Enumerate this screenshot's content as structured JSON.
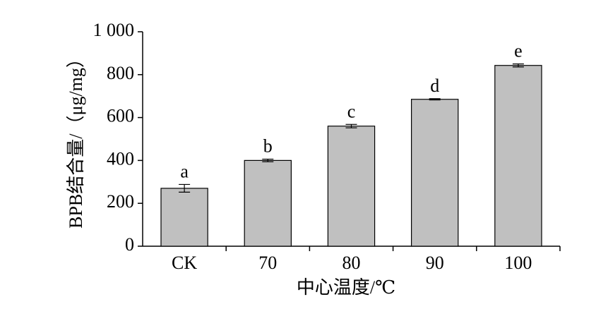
{
  "chart_data": {
    "type": "bar",
    "x_label": "中心温度/℃",
    "y_label": "BPB结合量/（μg/mg）",
    "categories": [
      "CK",
      "70",
      "80",
      "90",
      "100"
    ],
    "values": [
      270,
      400,
      560,
      685,
      843
    ],
    "errors": [
      18,
      6,
      8,
      3,
      7
    ],
    "significance_letters": [
      "a",
      "b",
      "c",
      "d",
      "e"
    ],
    "color": "#c0c0c0",
    "ylim": [
      0,
      1000
    ],
    "yticks": [
      0,
      200,
      400,
      600,
      800,
      {
        "value": 1000,
        "label": "1 000"
      }
    ],
    "grid": false
  }
}
